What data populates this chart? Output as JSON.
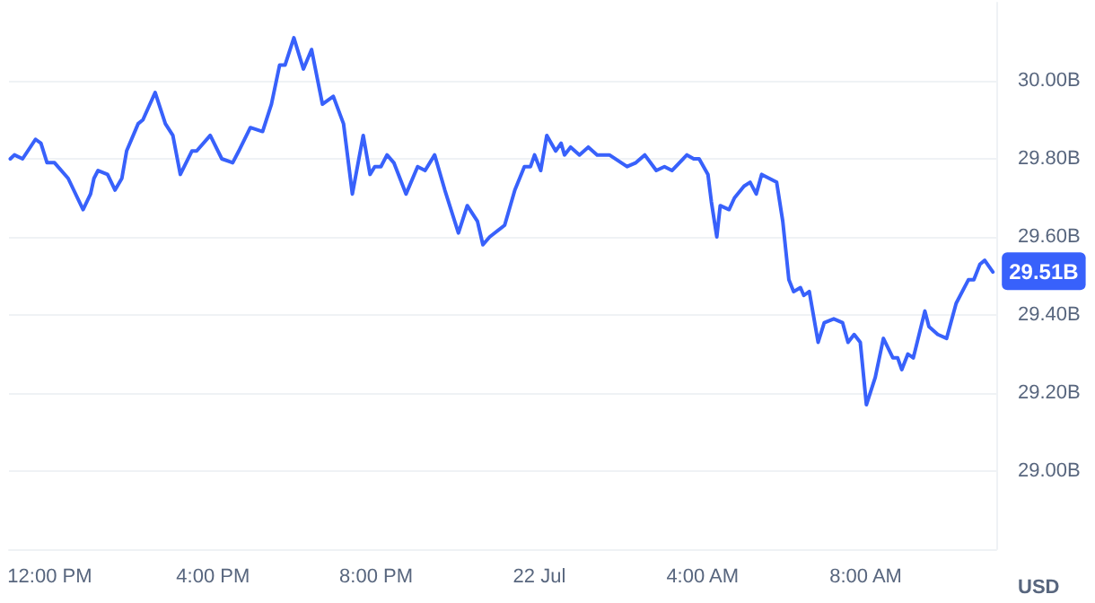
{
  "chart_data": {
    "type": "line",
    "ylabel": "USD",
    "x": [
      "--07-21T11:02",
      "--07-21T11:08",
      "--07-21T11:20",
      "--07-21T11:39",
      "--07-21T11:47",
      "--07-21T11:56",
      "--07-21T12:07",
      "--07-21T12:27",
      "--07-21T12:49",
      "--07-21T13:00",
      "--07-21T13:05",
      "--07-21T13:11",
      "--07-21T13:25",
      "--07-21T13:36",
      "--07-21T13:46",
      "--07-21T13:53",
      "--07-21T14:10",
      "--07-21T14:17",
      "--07-21T14:35",
      "--07-21T14:50",
      "--07-21T15:01",
      "--07-21T15:12",
      "--07-21T15:29",
      "--07-21T15:36",
      "--07-21T15:56",
      "--07-21T16:13",
      "--07-21T16:29",
      "--07-21T16:38",
      "--07-21T16:55",
      "--07-21T17:13",
      "--07-21T17:26",
      "--07-21T17:38",
      "--07-21T17:46",
      "--07-21T17:59",
      "--07-21T18:13",
      "--07-21T18:25",
      "--07-21T18:41",
      "--07-21T18:57",
      "--07-21T19:12",
      "--07-21T19:25",
      "--07-21T19:41",
      "--07-21T19:51",
      "--07-21T19:58",
      "--07-21T20:07",
      "--07-21T20:16",
      "--07-21T20:26",
      "--07-21T20:44",
      "--07-21T21:01",
      "--07-21T21:12",
      "--07-21T21:26",
      "--07-21T21:41",
      "--07-21T22:01",
      "--07-21T22:14",
      "--07-21T22:29",
      "--07-21T22:37",
      "--07-21T22:47",
      "--07-21T23:09",
      "--07-21T23:24",
      "--07-21T23:38",
      "--07-21T23:47",
      "--07-21T23:53",
      "--07-22T00:02",
      "--07-22T00:11",
      "--07-22T00:24",
      "--07-22T00:32",
      "--07-22T00:37",
      "--07-22T00:46",
      "--07-22T00:59",
      "--07-22T01:12",
      "--07-22T01:25",
      "--07-22T01:43",
      "--07-22T02:09",
      "--07-22T02:22",
      "--07-22T02:35",
      "--07-22T02:52",
      "--07-22T03:04",
      "--07-22T03:15",
      "--07-22T03:37",
      "--07-22T03:47",
      "--07-22T03:55",
      "--07-22T04:08",
      "--07-22T04:13",
      "--07-22T04:21",
      "--07-22T04:26",
      "--07-22T04:39",
      "--07-22T04:47",
      "--07-22T05:01",
      "--07-22T05:10",
      "--07-22T05:19",
      "--07-22T05:27",
      "--07-22T05:49",
      "--07-22T05:58",
      "--07-22T06:07",
      "--07-22T06:14",
      "--07-22T06:24",
      "--07-22T06:29",
      "--07-22T06:37",
      "--07-22T06:50",
      "--07-22T06:59",
      "--07-22T07:13",
      "--07-22T07:26",
      "--07-22T07:34",
      "--07-22T07:43",
      "--07-22T07:52",
      "--07-22T08:01",
      "--07-22T08:14",
      "--07-22T08:26",
      "--07-22T08:40",
      "--07-22T08:47",
      "--07-22T08:53",
      "--07-22T09:02",
      "--07-22T09:10",
      "--07-22T09:27",
      "--07-22T09:33",
      "--07-22T09:46",
      "--07-22T09:59",
      "--07-22T10:13",
      "--07-22T10:31",
      "--07-22T10:39",
      "--07-22T10:48",
      "--07-22T10:55",
      "--07-22T11:07"
    ],
    "series": [
      {
        "color": "#3861fb",
        "values": [
          29.8,
          29.81,
          29.8,
          29.85,
          29.84,
          29.79,
          29.79,
          29.75,
          29.67,
          29.71,
          29.75,
          29.77,
          29.76,
          29.72,
          29.75,
          29.82,
          29.89,
          29.9,
          29.97,
          29.89,
          29.86,
          29.76,
          29.82,
          29.82,
          29.86,
          29.8,
          29.79,
          29.82,
          29.88,
          29.87,
          29.94,
          30.04,
          30.04,
          30.11,
          30.03,
          30.08,
          29.94,
          29.96,
          29.89,
          29.71,
          29.86,
          29.76,
          29.78,
          29.78,
          29.81,
          29.79,
          29.71,
          29.78,
          29.77,
          29.81,
          29.72,
          29.61,
          29.68,
          29.64,
          29.58,
          29.6,
          29.63,
          29.72,
          29.78,
          29.78,
          29.81,
          29.77,
          29.86,
          29.82,
          29.84,
          29.81,
          29.83,
          29.81,
          29.83,
          29.81,
          29.81,
          29.78,
          29.79,
          29.81,
          29.77,
          29.78,
          29.77,
          29.81,
          29.8,
          29.8,
          29.76,
          29.69,
          29.6,
          29.68,
          29.67,
          29.7,
          29.73,
          29.74,
          29.71,
          29.76,
          29.74,
          29.64,
          29.49,
          29.46,
          29.47,
          29.45,
          29.46,
          29.33,
          29.38,
          29.39,
          29.38,
          29.33,
          29.35,
          29.33,
          29.17,
          29.24,
          29.34,
          29.29,
          29.29,
          29.26,
          29.3,
          29.29,
          29.41,
          29.37,
          29.35,
          29.34,
          29.43,
          29.49,
          29.49,
          29.53,
          29.54,
          29.51
        ]
      }
    ],
    "xlim": [
      "--07-21T11:00",
      "--07-22T11:12"
    ],
    "xticks": [
      {
        "value": "--07-21T12:00",
        "label": "12:00 PM"
      },
      {
        "value": "--07-21T16:00",
        "label": "4:00 PM"
      },
      {
        "value": "--07-21T20:00",
        "label": "8:00 PM"
      },
      {
        "value": "--07-22T00:00",
        "label": "22 Jul"
      },
      {
        "value": "--07-22T04:00",
        "label": "4:00 AM"
      },
      {
        "value": "--07-22T08:00",
        "label": "8:00 AM"
      }
    ],
    "ylim": [
      28.8,
      30.2
    ],
    "yticks": [
      {
        "value": 29,
        "label": "29.00B"
      },
      {
        "value": 29.2,
        "label": "29.20B"
      },
      {
        "value": 29.4,
        "label": "29.40B"
      },
      {
        "value": 29.6,
        "label": "29.60B"
      },
      {
        "value": 29.8,
        "label": "29.80B"
      },
      {
        "value": 30,
        "label": "30.00B"
      }
    ],
    "annotations": [
      {
        "text": "29.51B",
        "x": "--07-22T11:07",
        "y": 29.51
      }
    ],
    "grid": "y",
    "marker": "none",
    "line_style": "solid"
  }
}
